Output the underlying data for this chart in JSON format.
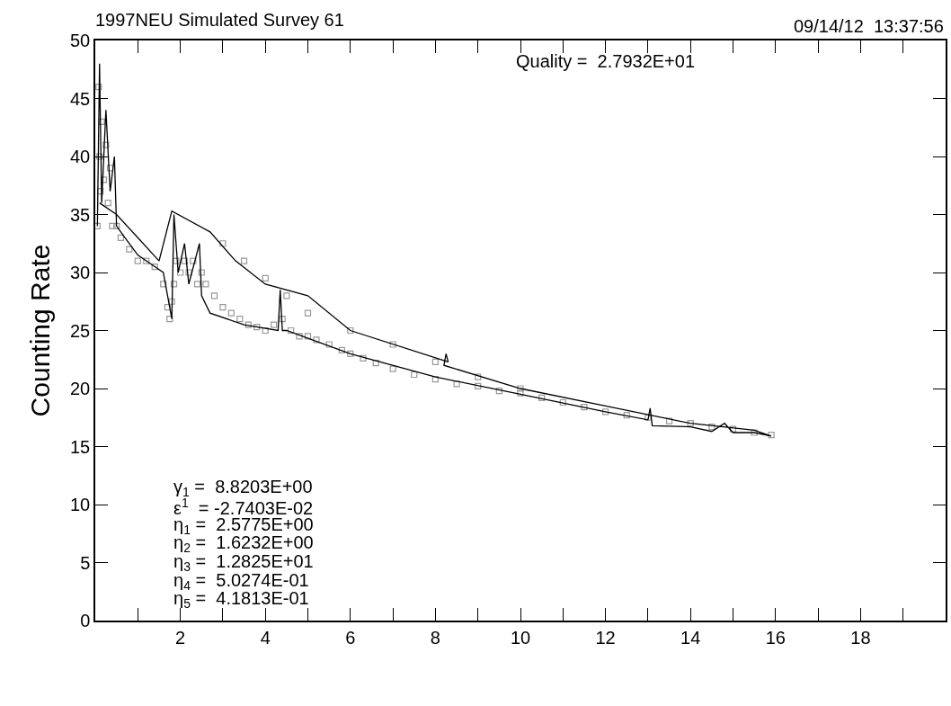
{
  "chart_data": {
    "type": "scatter",
    "title": "1997NEU Simulated Survey 61",
    "ylabel": "Counting Rate",
    "annotations": [
      "09/14/12  13:37:56",
      "Quality =  2.7932E+01",
      "γ$_{1}$ =  8.8203E+00",
      "ε$^{1}$  = -2.7403E-02",
      "η$_{1}$ =  2.5775E+00",
      "η$_{2}$ =  1.6232E+00",
      "η$_{3}$ =  1.2825E+01",
      "η$_{4}$ =  5.0274E-01",
      "η$_{5}$ =  4.1813E-01"
    ],
    "xlim": [
      0,
      20
    ],
    "ylim": [
      0,
      50
    ],
    "xticks": [
      {
        "value": 0,
        "label": null
      },
      {
        "value": 1,
        "label": null
      },
      2,
      {
        "value": 3,
        "label": null
      },
      4,
      {
        "value": 5,
        "label": null
      },
      6,
      {
        "value": 7,
        "label": null
      },
      8,
      {
        "value": 9,
        "label": null
      },
      10,
      {
        "value": 11,
        "label": null
      },
      12,
      {
        "value": 13,
        "label": null
      },
      14,
      {
        "value": 15,
        "label": null
      },
      16,
      {
        "value": 17,
        "label": null
      },
      18,
      {
        "value": 19,
        "label": null
      },
      {
        "value": 20,
        "label": null
      }
    ],
    "yticks": [
      0,
      5,
      10,
      15,
      20,
      25,
      30,
      35,
      40,
      45,
      50
    ],
    "grid": false,
    "legend": false,
    "series": [
      {
        "marker": "square",
        "color": "#999999",
        "x": [
          0.05,
          0.08,
          0.1,
          0.12,
          0.15,
          0.2,
          0.25,
          0.3,
          0.35,
          0.4,
          0.5,
          0.6,
          0.8,
          1.0,
          1.2,
          1.4,
          1.6,
          1.7,
          1.75,
          1.8,
          1.85,
          1.9,
          2.0,
          2.1,
          2.2,
          2.3,
          2.4,
          2.5,
          2.6,
          2.8,
          3.0,
          3.2,
          3.4,
          3.6,
          3.8,
          4.0,
          4.2,
          4.4,
          4.6,
          4.8,
          5.0,
          5.2,
          5.5,
          5.8,
          6.0,
          6.3,
          6.6,
          7.0,
          7.5,
          8.0,
          8.5,
          9.0,
          9.5,
          10.0,
          10.5,
          11.0,
          11.5,
          12.0,
          12.5,
          13.0,
          13.5,
          14.0,
          14.5,
          15.0,
          15.5,
          15.9,
          3.0,
          3.5,
          4.0,
          4.5,
          5.0,
          6.0,
          7.0,
          8.0,
          9.0,
          10.0
        ],
        "values": [
          34,
          46,
          40,
          37,
          43,
          38,
          41,
          36,
          39,
          34,
          34,
          33,
          32,
          31,
          31,
          30.5,
          29,
          27,
          26,
          27.5,
          29,
          31,
          30,
          31,
          30,
          31,
          29,
          30,
          29,
          28,
          27,
          26.5,
          26,
          25.5,
          25.3,
          25,
          25.5,
          26,
          25,
          24.5,
          24.5,
          24.2,
          23.8,
          23.3,
          23,
          22.6,
          22.2,
          21.7,
          21.2,
          20.8,
          20.4,
          20.2,
          19.8,
          19.6,
          19.2,
          18.8,
          18.4,
          18,
          17.7,
          17.5,
          17.2,
          17,
          16.7,
          16.5,
          16.2,
          16,
          32.5,
          31,
          29.5,
          28,
          26.5,
          25,
          23.8,
          22.3,
          21,
          20
        ]
      },
      {
        "type": "line",
        "marker": "none",
        "color": "#000000",
        "x": [
          0.05,
          0.1,
          0.15,
          0.25,
          0.35,
          0.45,
          0.5,
          0.7,
          1.0,
          1.4,
          1.6,
          1.75,
          1.8,
          1.85,
          1.95,
          2.1,
          2.2,
          2.45,
          2.5,
          2.7,
          3.5,
          4.3,
          4.35,
          4.4,
          4.5,
          6,
          8,
          10,
          12,
          13,
          13.05,
          13.1,
          14,
          14.5,
          14.8,
          15,
          15.5,
          15.9,
          15.5,
          14,
          12,
          10,
          8.2,
          8.25,
          8.3,
          6,
          5,
          4,
          3.3,
          2.7,
          1.8,
          1.5,
          1.0,
          0.5,
          0.1
        ],
        "values": [
          34,
          48,
          36,
          44,
          37,
          40,
          34,
          33,
          31.5,
          30.5,
          30,
          27,
          26,
          35,
          30,
          32.5,
          29,
          32.5,
          28,
          26.5,
          25.5,
          25,
          28.5,
          25,
          25,
          23,
          21,
          19.5,
          18,
          17.3,
          18.3,
          16.8,
          16.7,
          16.3,
          17,
          16.2,
          16.2,
          15.9,
          16.4,
          17,
          18.5,
          20,
          22,
          23,
          22.3,
          25,
          28,
          29,
          31,
          33.5,
          35.3,
          31,
          33,
          35,
          36
        ]
      }
    ]
  }
}
